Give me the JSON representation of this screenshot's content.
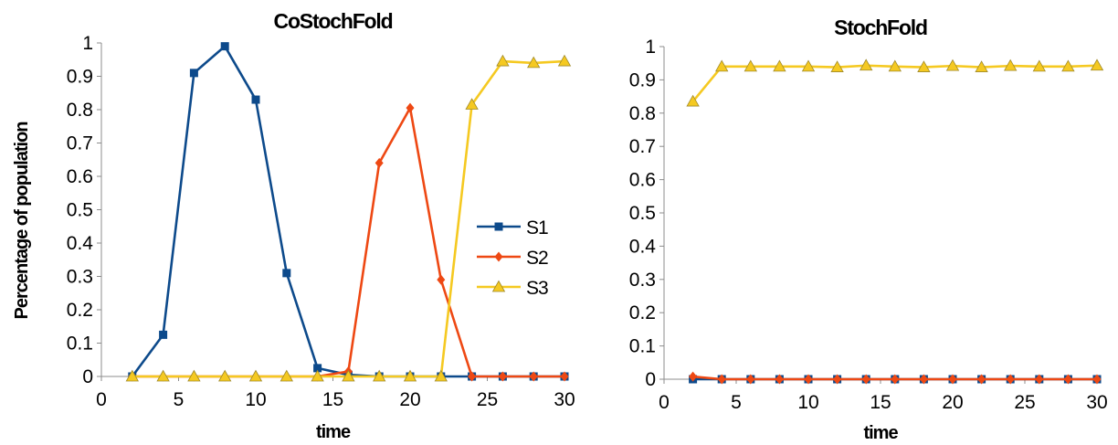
{
  "figure": {
    "left_chart_index": 0,
    "right_chart_index": 1
  },
  "chart_data": [
    {
      "type": "line",
      "title": "CoStochFold",
      "xlabel": "time",
      "ylabel": "Percentage of population",
      "xlim": [
        0,
        30
      ],
      "ylim": [
        0,
        1
      ],
      "xticks": [
        0,
        5,
        10,
        15,
        20,
        25,
        30
      ],
      "yticks": [
        0,
        0.1,
        0.2,
        0.3,
        0.4,
        0.5,
        0.6,
        0.7,
        0.8,
        0.9,
        1
      ],
      "ytick_labels": [
        "0",
        "0.1",
        "0.2",
        "0.3",
        "0.4",
        "0.5",
        "0.6",
        "0.7",
        "0.8",
        "0.9",
        "1"
      ],
      "xtick_labels": [
        "0",
        "5",
        "10",
        "15",
        "20",
        "25",
        "30"
      ],
      "grid": false,
      "legend": "right-center",
      "x": [
        2,
        4,
        6,
        8,
        10,
        12,
        14,
        16,
        18,
        20,
        22,
        24,
        26,
        28,
        30
      ],
      "series": [
        {
          "name": "S1",
          "color": "#0d4a8b",
          "marker": "square",
          "values": [
            0.0,
            0.125,
            0.91,
            0.99,
            0.83,
            0.31,
            0.025,
            0.005,
            0.0,
            0.0,
            0.0,
            0.0,
            0.0,
            0.0,
            0.0
          ]
        },
        {
          "name": "S2",
          "color": "#ee4813",
          "marker": "diamond",
          "values": [
            0.0,
            0.0,
            0.0,
            0.0,
            0.0,
            0.0,
            0.0,
            0.015,
            0.64,
            0.805,
            0.29,
            0.0,
            0.0,
            0.0,
            0.0
          ]
        },
        {
          "name": "S3",
          "color": "#f5c921",
          "marker": "triangle",
          "values": [
            0.0,
            0.0,
            0.0,
            0.0,
            0.0,
            0.0,
            0.0,
            0.0,
            0.0,
            0.0,
            0.0,
            0.815,
            0.945,
            0.94,
            0.945
          ]
        }
      ]
    },
    {
      "type": "line",
      "title": "StochFold",
      "xlabel": "time",
      "ylabel": "",
      "xlim": [
        0,
        30
      ],
      "ylim": [
        0,
        1
      ],
      "xticks": [
        0,
        5,
        10,
        15,
        20,
        25,
        30
      ],
      "yticks": [
        0,
        0.1,
        0.2,
        0.3,
        0.4,
        0.5,
        0.6,
        0.7,
        0.8,
        0.9,
        1
      ],
      "ytick_labels": [
        "0",
        "0.1",
        "0.2",
        "0.3",
        "0.4",
        "0.5",
        "0.6",
        "0.7",
        "0.8",
        "0.9",
        "1"
      ],
      "xtick_labels": [
        "0",
        "5",
        "10",
        "15",
        "20",
        "25",
        "30"
      ],
      "grid": false,
      "legend": "none",
      "x": [
        2,
        4,
        6,
        8,
        10,
        12,
        14,
        16,
        18,
        20,
        22,
        24,
        26,
        28,
        30
      ],
      "series": [
        {
          "color": "#0d4a8b",
          "marker": "square",
          "values": [
            0.0,
            0.0,
            0.0,
            0.0,
            0.0,
            0.0,
            0.0,
            0.0,
            0.0,
            0.0,
            0.0,
            0.0,
            0.0,
            0.0,
            0.0
          ]
        },
        {
          "color": "#ee4813",
          "marker": "diamond",
          "values": [
            0.008,
            0.0,
            0.0,
            0.0,
            0.0,
            0.0,
            0.0,
            0.0,
            0.0,
            0.0,
            0.0,
            0.0,
            0.0,
            0.0,
            0.0
          ]
        },
        {
          "color": "#f5c921",
          "marker": "triangle",
          "values": [
            0.835,
            0.94,
            0.94,
            0.94,
            0.94,
            0.938,
            0.943,
            0.94,
            0.938,
            0.942,
            0.938,
            0.942,
            0.94,
            0.94,
            0.943
          ]
        }
      ]
    }
  ]
}
